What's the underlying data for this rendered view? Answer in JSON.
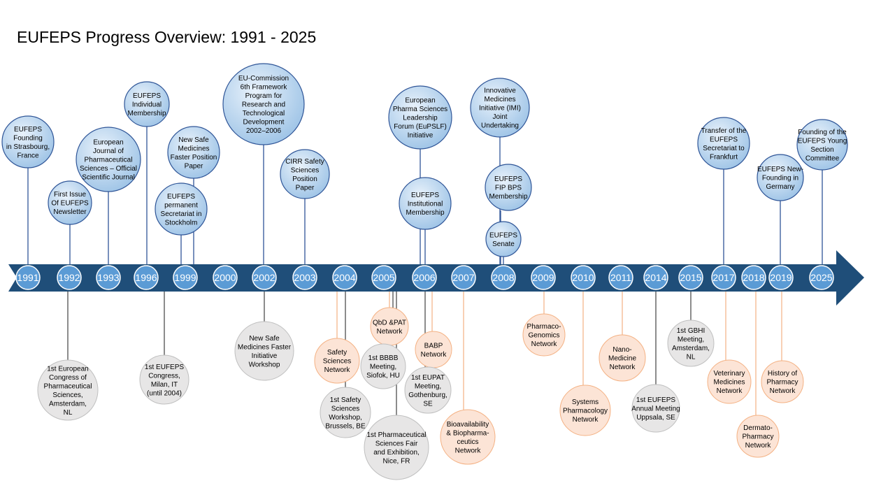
{
  "title": "EUFEPS Progress Overview: 1991 - 2025",
  "colors": {
    "arrow": "#1f4e79",
    "blue_fill_light": "#dbeaf7",
    "blue_fill_dark": "#9dc3e6",
    "blue_stroke": "#2f5597",
    "gray_fill": "#e7e6e6",
    "gray_stroke": "#bfbfbf",
    "orange_fill": "#fce4d6",
    "orange_stroke": "#f4b183",
    "line_dark": "#404040"
  },
  "years": [
    "1991",
    "1992",
    "1993",
    "1996",
    "1999",
    "2000",
    "2002",
    "2003",
    "2004",
    "2005",
    "2006",
    "2007",
    "2008",
    "2009",
    "2010",
    "2011",
    "2014",
    "2015",
    "2017",
    "2018",
    "2019",
    "2025"
  ],
  "milestones": [
    {
      "name": "founding-strasbourg",
      "year": "1991",
      "style": "blue",
      "lines": [
        "EUFEPS",
        "Founding",
        "in Strasbourg,",
        "France"
      ]
    },
    {
      "name": "first-newsletter",
      "year": "1992",
      "style": "blue",
      "lines": [
        "First Issue",
        "Of EUFEPS",
        "Newsletter"
      ]
    },
    {
      "name": "european-journal",
      "year": "1993",
      "style": "blue",
      "lines": [
        "European",
        "Journal of",
        "Pharmaceutical",
        "Sciences – Official",
        "Scientific Journal"
      ]
    },
    {
      "name": "individual-membership",
      "year": "1996",
      "style": "blue",
      "lines": [
        "EUFEPS",
        "Individual",
        "Membership"
      ]
    },
    {
      "name": "new-safe-medicines-paper",
      "year": "1999",
      "style": "blue",
      "lines": [
        "New Safe",
        "Medicines",
        "Faster Position",
        "Paper"
      ]
    },
    {
      "name": "permanent-secretariat",
      "year": "1999",
      "style": "blue",
      "lines": [
        "EUFEPS",
        "permanent",
        "Secretariat in",
        "Stockholm"
      ]
    },
    {
      "name": "eu-commission-fp6",
      "year": "2002",
      "style": "blue",
      "lines": [
        "EU-Commission",
        "6th Framework",
        "Program for",
        "Research and",
        "Technological",
        "Development",
        "2002–2006"
      ]
    },
    {
      "name": "cirr-safety-paper",
      "year": "2003",
      "style": "blue",
      "lines": [
        "CIRR Safety",
        "Sciences",
        "Position",
        "Paper"
      ]
    },
    {
      "name": "eupslf",
      "year": "2006",
      "style": "blue",
      "lines": [
        "European",
        "Pharma Sciences",
        "Leadership",
        "Forum (EuPSLF)",
        "Initiative"
      ]
    },
    {
      "name": "institutional-membership",
      "year": "2006",
      "style": "blue",
      "lines": [
        "EUFEPS",
        "Institutional",
        "Membership"
      ]
    },
    {
      "name": "imi-joint-undertaking",
      "year": "2008",
      "style": "blue",
      "lines": [
        "Innovative",
        "Medicines",
        "Initiative (IMI)",
        "Joint",
        "Undertaking"
      ]
    },
    {
      "name": "fip-bps-membership",
      "year": "2008",
      "style": "blue",
      "lines": [
        "EUFEPS",
        "FIP BPS",
        "Membership"
      ]
    },
    {
      "name": "eufeps-senate",
      "year": "2008",
      "style": "blue",
      "lines": [
        "EUFEPS",
        "Senate"
      ]
    },
    {
      "name": "transfer-frankfurt",
      "year": "2017",
      "style": "blue",
      "lines": [
        "Transfer of the",
        "EUFEPS",
        "Secretariat to",
        "Frankfurt"
      ]
    },
    {
      "name": "new-founding-germany",
      "year": "2019",
      "style": "blue",
      "lines": [
        "EUFEPS New-",
        "Founding in",
        "Germany"
      ]
    },
    {
      "name": "young-section-committee",
      "year": "2025",
      "style": "blue",
      "lines": [
        "Founding of the",
        "EUFEPS Young",
        "Section",
        "Committee"
      ]
    },
    {
      "name": "first-european-congress",
      "year": "1992",
      "style": "gray",
      "lines": [
        "1st European",
        "Congress of",
        "Pharmaceutical",
        "Sciences,",
        "Amsterdam,",
        "NL"
      ]
    },
    {
      "name": "eufeps-congress-milan",
      "year": "1999",
      "style": "gray",
      "lines": [
        "1st EUFEPS",
        "Congress,",
        "Milan, IT",
        "(until 2004)"
      ]
    },
    {
      "name": "nsmf-initiative-workshop",
      "year": "2002",
      "style": "gray",
      "lines": [
        "New Safe",
        "Medicines Faster",
        "Initiative",
        "Workshop"
      ]
    },
    {
      "name": "safety-sciences-network",
      "year": "2004",
      "style": "orange",
      "lines": [
        "Safety",
        "Sciences",
        "Network"
      ]
    },
    {
      "name": "safety-sciences-workshop",
      "year": "2004",
      "style": "gray",
      "lines": [
        "1st Safety",
        "Sciences",
        "Workshop,",
        "Brussels, BE"
      ]
    },
    {
      "name": "qbd-pat-network",
      "year": "2005",
      "style": "orange",
      "lines": [
        "QbD &PAT",
        "Network"
      ]
    },
    {
      "name": "bbbb-meeting",
      "year": "2005",
      "style": "gray",
      "lines": [
        "1st BBBB",
        "Meeting,",
        "Siofok, HU"
      ]
    },
    {
      "name": "pharma-sciences-fair",
      "year": "2005",
      "style": "gray",
      "lines": [
        "1st Pharmaceutical",
        "Sciences Fair",
        "and Exhibition,",
        "Nice, FR"
      ]
    },
    {
      "name": "babp-network",
      "year": "2006",
      "style": "orange",
      "lines": [
        "BABP",
        "Network"
      ]
    },
    {
      "name": "eupat-meeting",
      "year": "2006",
      "style": "gray",
      "lines": [
        "1st EUPAT",
        "Meeting,",
        "Gothenburg,",
        "SE"
      ]
    },
    {
      "name": "bioavailability-network",
      "year": "2007",
      "style": "orange",
      "lines": [
        "Bioavailability",
        "& Biopharma-",
        "ceutics",
        "Network"
      ]
    },
    {
      "name": "pharmacogenomics-network",
      "year": "2009",
      "style": "orange",
      "lines": [
        "Pharmaco-",
        "Genomics",
        "Network"
      ]
    },
    {
      "name": "systems-pharmacology-network",
      "year": "2010",
      "style": "orange",
      "lines": [
        "Systems",
        "Pharmacology",
        "Network"
      ]
    },
    {
      "name": "nano-medicine-network",
      "year": "2011",
      "style": "orange",
      "lines": [
        "Nano-",
        "Medicine",
        "Network"
      ]
    },
    {
      "name": "annual-meeting-uppsala",
      "year": "2014",
      "style": "gray",
      "lines": [
        "1st EUFEPS",
        "Annual Meeting",
        "Uppsala, SE"
      ]
    },
    {
      "name": "gbhi-meeting",
      "year": "2015",
      "style": "gray",
      "lines": [
        "1st GBHI",
        "Meeting,",
        "Amsterdam,",
        "NL"
      ]
    },
    {
      "name": "veterinary-medicines-network",
      "year": "2017",
      "style": "orange",
      "lines": [
        "Veterinary",
        "Medicines",
        "Network"
      ]
    },
    {
      "name": "dermato-pharmacy-network",
      "year": "2018",
      "style": "orange",
      "lines": [
        "Dermato-",
        "Pharmacy",
        "Network"
      ]
    },
    {
      "name": "history-of-pharmacy-network",
      "year": "2019",
      "style": "orange",
      "lines": [
        "History of",
        "Pharmacy",
        "Network"
      ]
    }
  ]
}
